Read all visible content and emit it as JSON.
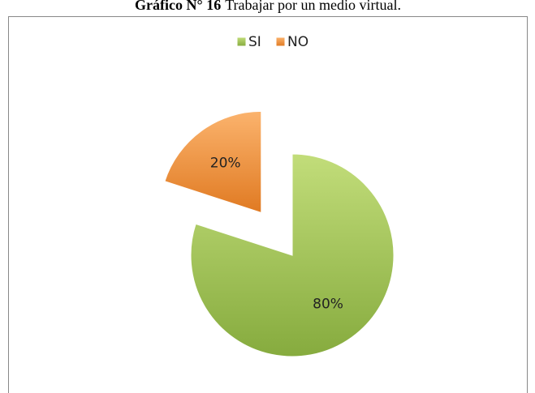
{
  "chart_data": {
    "type": "pie",
    "title_prefix": "Gráfico N° 16",
    "title": "Trabajar por un medio virtual.",
    "categories": [
      "SI",
      "NO"
    ],
    "values": [
      80,
      20
    ],
    "value_labels": [
      "80%",
      "20%"
    ],
    "colors": [
      "#9bbb59",
      "#f79646"
    ],
    "legend": "top"
  }
}
